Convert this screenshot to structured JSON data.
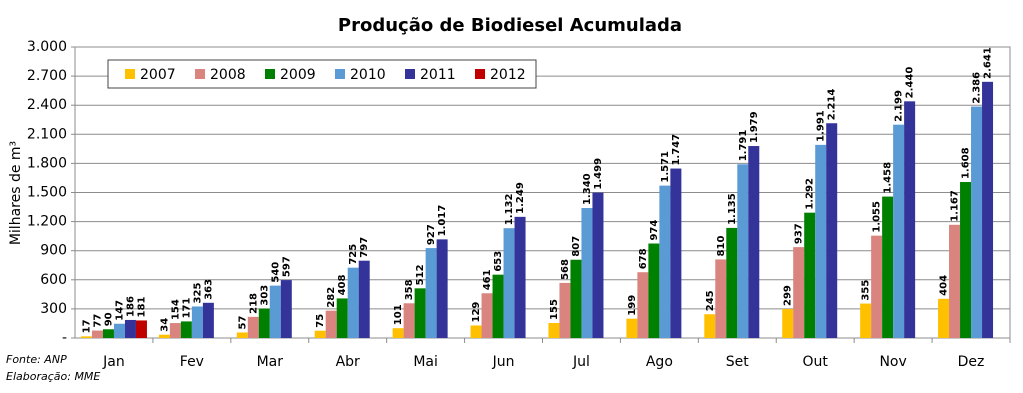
{
  "chart_data": {
    "type": "bar",
    "title": "Produção de Biodiesel Acumulada",
    "y_label": "Milhares de m³",
    "source": "Fonte: ANP",
    "credit": "Elaboração: MME",
    "categories": [
      "Jan",
      "Fev",
      "Mar",
      "Abr",
      "Mai",
      "Jun",
      "Jul",
      "Ago",
      "Set",
      "Out",
      "Nov",
      "Dez"
    ],
    "series": [
      {
        "name": "2007",
        "color": "#FFC000",
        "values": [
          17,
          34,
          57,
          75,
          101,
          129,
          155,
          199,
          245,
          299,
          355,
          404
        ],
        "value_labels": [
          "17",
          "34",
          "57",
          "75",
          "101",
          "129",
          "155",
          "199",
          "245",
          "299",
          "355",
          "404"
        ]
      },
      {
        "name": "2008",
        "color": "#D9847E",
        "values": [
          77,
          154,
          218,
          282,
          358,
          461,
          568,
          678,
          810,
          937,
          1055,
          1167
        ],
        "value_labels": [
          "77",
          "154",
          "218",
          "282",
          "358",
          "461",
          "568",
          "678",
          "810",
          "937",
          "1.055",
          "1.167"
        ]
      },
      {
        "name": "2009",
        "color": "#008000",
        "values": [
          90,
          171,
          303,
          408,
          512,
          653,
          807,
          974,
          1135,
          1292,
          1458,
          1608
        ],
        "value_labels": [
          "90",
          "171",
          "303",
          "408",
          "512",
          "653",
          "807",
          "974",
          "1.135",
          "1.292",
          "1.458",
          "1.608"
        ]
      },
      {
        "name": "2010",
        "color": "#5B9BD5",
        "values": [
          147,
          325,
          540,
          725,
          927,
          1132,
          1340,
          1571,
          1791,
          1991,
          2199,
          2386
        ],
        "value_labels": [
          "147",
          "325",
          "540",
          "725",
          "927",
          "1.132",
          "1.340",
          "1.571",
          "1.791",
          "1.991",
          "2.199",
          "2.386"
        ]
      },
      {
        "name": "2011",
        "color": "#333399",
        "values": [
          186,
          363,
          597,
          797,
          1017,
          1249,
          1499,
          1747,
          1979,
          2214,
          2440,
          2641
        ],
        "value_labels": [
          "186",
          "363",
          "597",
          "797",
          "1.017",
          "1.249",
          "1.499",
          "1.747",
          "1.979",
          "2.214",
          "2.440",
          "2.641"
        ]
      },
      {
        "name": "2012",
        "color": "#C00000",
        "values": [
          181,
          null,
          null,
          null,
          null,
          null,
          null,
          null,
          null,
          null,
          null,
          null
        ],
        "value_labels": [
          "181",
          null,
          null,
          null,
          null,
          null,
          null,
          null,
          null,
          null,
          null,
          null
        ]
      }
    ],
    "ylim": [
      0,
      3000
    ],
    "yticks": [
      {
        "value": 0,
        "label": "-"
      },
      300,
      600,
      900,
      {
        "value": 1200,
        "label": "1.200"
      },
      {
        "value": 1500,
        "label": "1.500"
      },
      {
        "value": 1800,
        "label": "1.800"
      },
      {
        "value": 2100,
        "label": "2.100"
      },
      {
        "value": 2400,
        "label": "2.400"
      },
      {
        "value": 2700,
        "label": "2.700"
      },
      {
        "value": 3000,
        "label": "3.000"
      }
    ],
    "grid": true,
    "legend": "top-left"
  }
}
